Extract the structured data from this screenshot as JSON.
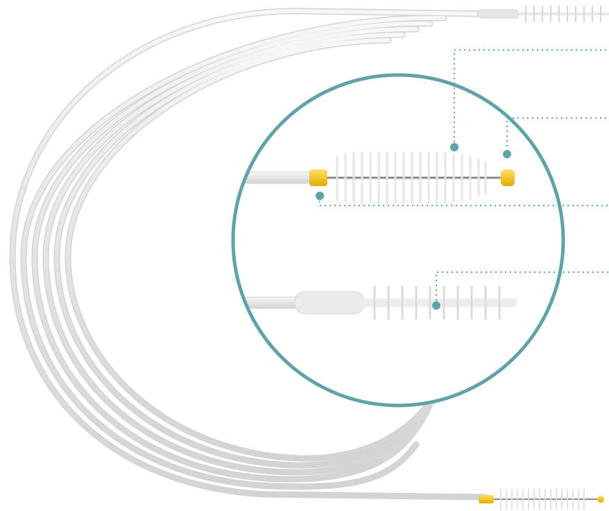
{
  "image": {
    "subject": "cleaning-brush-product-photo",
    "colors": {
      "background": "#ffffff",
      "cable": "#e6e6e6",
      "cable_edge": "#cfcfcf",
      "accent_ring": "#5fa3a8",
      "callout_dot": "#5fa3a8",
      "brush_tip": "#f5c400",
      "bristles": "#f2f2f2",
      "wire": "#8a8a8a"
    },
    "icons": [
      "magnifier-circle",
      "callout-dot",
      "leader-line"
    ]
  }
}
